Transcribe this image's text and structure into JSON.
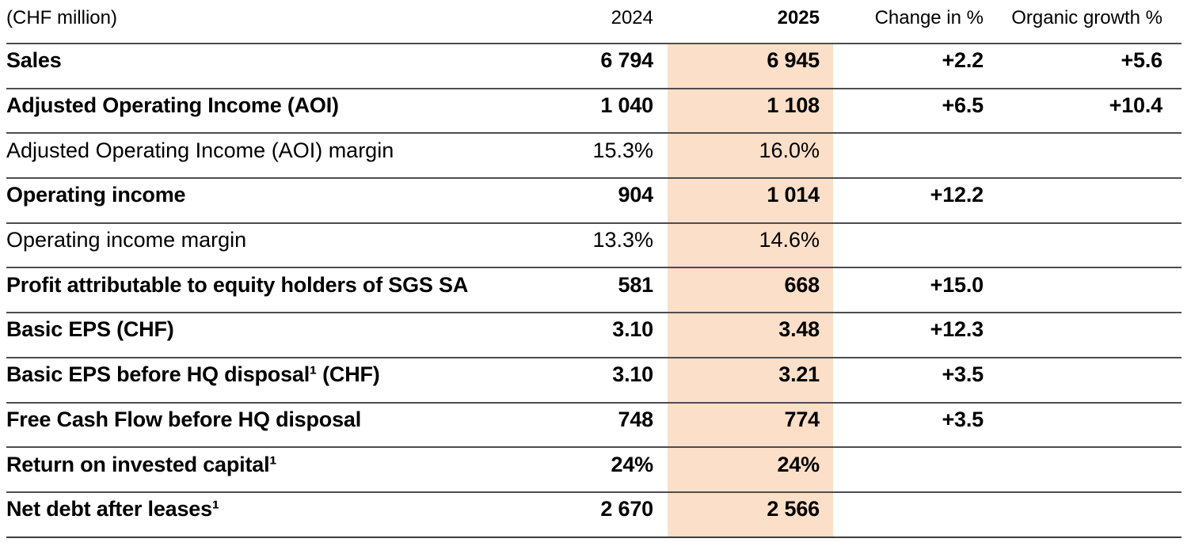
{
  "unit_label": "(CHF million)",
  "columns": {
    "y2024": "2024",
    "y2025": "2025",
    "change": "Change in %",
    "organic": "Organic growth %"
  },
  "highlight_color": "#fbdfc9",
  "rows": [
    {
      "label": "Sales",
      "v2024": "6 794",
      "v2025": "6 945",
      "change": "+2.2",
      "organic": "+5.6"
    },
    {
      "label": "Adjusted Operating Income (AOI)",
      "v2024": "1 040",
      "v2025": "1 108",
      "change": "+6.5",
      "organic": "+10.4"
    },
    {
      "label": "Adjusted Operating Income (AOI) margin",
      "v2024": "15.3%",
      "v2025": "16.0%",
      "change": "",
      "organic": ""
    },
    {
      "label": "Operating income",
      "v2024": "904",
      "v2025": "1 014",
      "change": "+12.2",
      "organic": ""
    },
    {
      "label": "Operating income margin",
      "v2024": "13.3%",
      "v2025": "14.6%",
      "change": "",
      "organic": ""
    },
    {
      "label": "Profit attributable to equity holders of SGS SA",
      "v2024": "581",
      "v2025": "668",
      "change": "+15.0",
      "organic": ""
    },
    {
      "label": "Basic EPS (CHF)",
      "v2024": "3.10",
      "v2025": "3.48",
      "change": "+12.3",
      "organic": ""
    },
    {
      "label": "Basic EPS before HQ disposal¹ (CHF)",
      "v2024": "3.10",
      "v2025": "3.21",
      "change": "+3.5",
      "organic": ""
    },
    {
      "label": "Free Cash Flow before HQ disposal",
      "v2024": "748",
      "v2025": "774",
      "change": "+3.5",
      "organic": ""
    },
    {
      "label": "Return on invested capital¹",
      "v2024": "24%",
      "v2025": "24%",
      "change": "",
      "organic": ""
    },
    {
      "label": "Net debt after leases¹",
      "v2024": "2 670",
      "v2025": "2 566",
      "change": "",
      "organic": ""
    }
  ]
}
